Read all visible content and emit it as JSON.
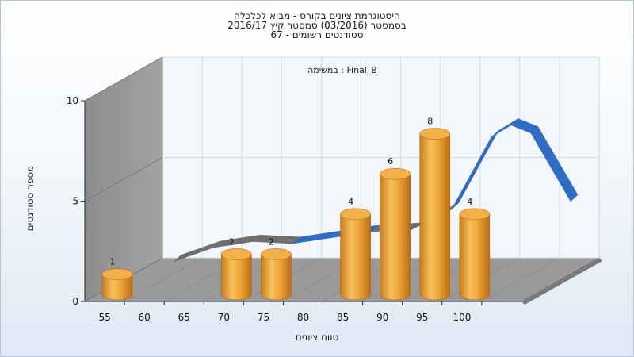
{
  "chart_data": {
    "type": "bar",
    "title_lines": [
      "היסטוגרמת ציונים בקורס - מבוא לכלכלה",
      "בסמסטר  (03/2016)  סמסטר קיץ 2016/17",
      "סטודנטים רשומים - 67"
    ],
    "annotation": "במשימה : Final_B",
    "xlabel": "טווח ציונים",
    "ylabel": "מספר סטודנטים",
    "categories": [
      "55",
      "60",
      "65",
      "70",
      "75",
      "80",
      "85",
      "90",
      "95",
      "100"
    ],
    "bars": [
      {
        "x": 55,
        "value": 1
      },
      {
        "x": 70,
        "value": 2
      },
      {
        "x": 75,
        "value": 2
      },
      {
        "x": 85,
        "value": 4
      },
      {
        "x": 90,
        "value": 6
      },
      {
        "x": 95,
        "value": 8
      },
      {
        "x": 100,
        "value": 4
      }
    ],
    "curve": {
      "x": [
        55,
        60,
        65,
        70,
        75,
        80,
        85,
        90,
        95,
        97.5,
        100,
        105
      ],
      "y": [
        0.6,
        1.3,
        1.6,
        1.5,
        1.8,
        2.1,
        2.2,
        3.2,
        6.8,
        7.4,
        7.0,
        3.6
      ]
    },
    "yticks": [
      0,
      5,
      10
    ],
    "ylim": [
      0,
      10
    ],
    "xlim": [
      50,
      105
    ],
    "grid": true,
    "colors": {
      "bar": "#f0a83a",
      "curve_low": "#6f6f6f",
      "curve_high": "#2f6cc4",
      "wall": "#a9a9a9",
      "floor": "#9a9a9a"
    }
  }
}
